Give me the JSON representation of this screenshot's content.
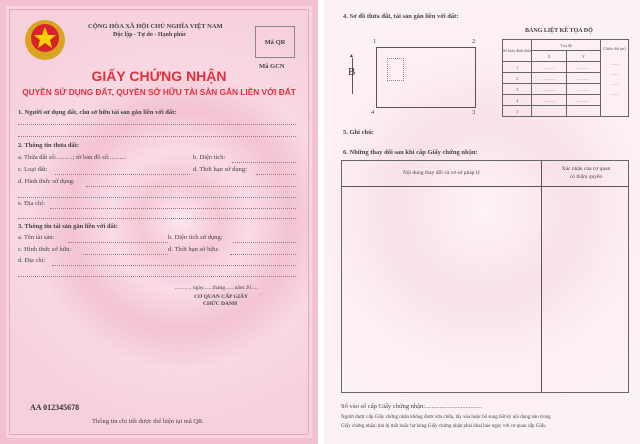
{
  "left": {
    "header1": "CỘNG HÒA XÃ HỘI CHỦ NGHĨA VIỆT NAM",
    "header2": "Độc lập - Tự do - Hạnh phúc",
    "qr_label": "Mã QR",
    "gcn_label": "Mã GCN",
    "title": "GIẤY CHỨNG NHẬN",
    "subtitle": "QUYỀN SỬ DỤNG ĐẤT, QUYỀN SỞ HỮU TÀI SẢN GẮN LIỀN VỚI ĐẤT",
    "s1": "1. Người sử dụng đất, chủ sở hữu tài sản gắn liền với đất:",
    "s2": "2. Thông tin thửa đất:",
    "s2a": "a. Thửa đất số:..........; tờ bản đồ số:..........",
    "s2b": "b. Diện tích:",
    "s2c": "c. Loại đất:",
    "s2d2": "d. Thời hạn sử dụng:",
    "s2d": "d. Hình thức sử dụng:",
    "s2e": "e. Địa chỉ:",
    "s3": "3. Thông tin tài sản gắn liền với đất:",
    "s3a": "a. Tên tài sản:",
    "s3b": "b. Diện tích sử dụng:",
    "s3c": "c. Hình thức sở hữu:",
    "s3d2": "d. Thời hạn sở hữu:",
    "s3d": "d. Địa chỉ:",
    "date": "..........., ngày.......tháng.......năm 20.....",
    "agency": "CƠ QUAN CẤP GIẤY",
    "position": "CHỨC DANH",
    "serial": "AA 012345678",
    "footer": "Thông tin chi tiết được thể hiện tại mã QR.",
    "accent": "#e0303a"
  },
  "right": {
    "s4": "4. Sơ đồ thửa đất, tài sản gắn liền với đất:",
    "north": "B",
    "corners": [
      "1",
      "2",
      "3",
      "4"
    ],
    "coord_title": "BẢNG LIỆT KÊ TỌA ĐỘ",
    "coord_headers": {
      "vertex": "Số hiệu đỉnh thửa",
      "coord": "Tọa độ",
      "x": "X",
      "y": "Y",
      "length": "Chiều dài (m)"
    },
    "coord_rows": [
      "1",
      "2",
      "3",
      "4",
      "1"
    ],
    "blank": "............",
    "s5": "5. Ghi chú:",
    "s6": "6. Những thay đổi sau khi cấp Giấy chứng nhận:",
    "col1": "Nội dung thay đổi và cơ sở pháp lý",
    "col2a": "Xác nhận của cơ quan",
    "col2b": "có thẩm quyền",
    "register": "Số vào sổ cấp Giấy chứng nhận:...................................",
    "note1": "Người được cấp Giấy chứng nhận không được sửa chữa, tẩy xóa hoặc bổ sung bất kỳ nội dung nào trong",
    "note2": "Giấy chứng nhận; khi bị mất hoặc hư hỏng Giấy chứng nhận phải khai báo ngay với cơ quan cấp Giấy."
  }
}
